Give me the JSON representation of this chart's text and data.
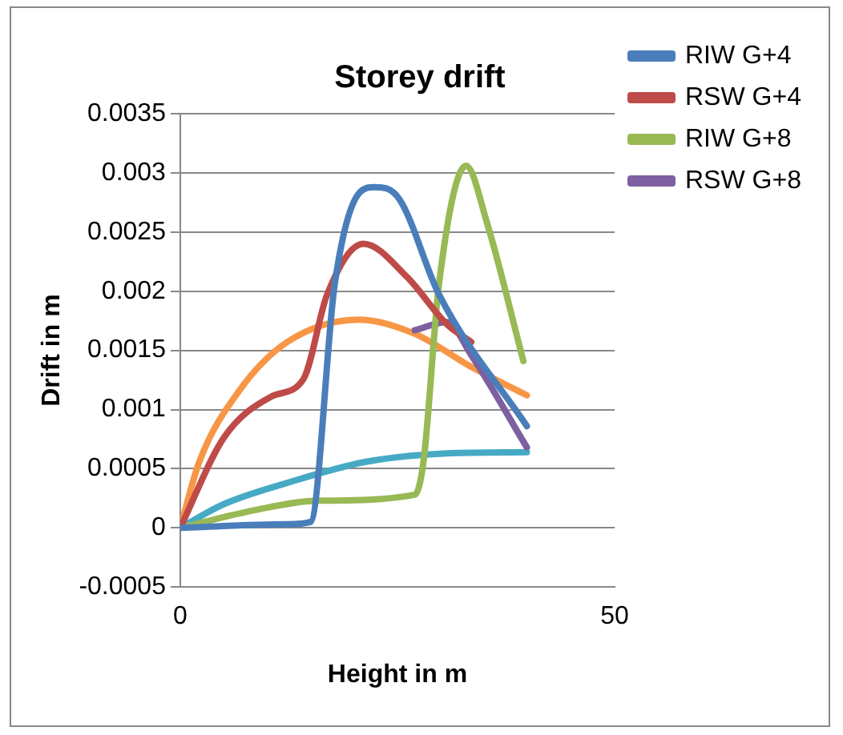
{
  "chart_data": {
    "type": "line",
    "title": "Storey drift",
    "xlabel": "Height in m",
    "ylabel": "Drift in m",
    "xlim": [
      0,
      50
    ],
    "xticks": [
      0,
      50
    ],
    "ylim": [
      -0.0005,
      0.0035
    ],
    "yticks": [
      -0.0005,
      0,
      0.0005,
      0.001,
      0.0015,
      0.002,
      0.0025,
      0.003,
      0.0035
    ],
    "grid": "y",
    "legend": "right",
    "marker": "none",
    "series": [
      {
        "name": "RIW G+4",
        "color": "#4a7ebb",
        "x": [
          0,
          12.3,
          15,
          17.8,
          20.6,
          22.4,
          25.2,
          29.8,
          39.9
        ],
        "values": [
          0,
          3e-05,
          5e-05,
          0.00207,
          0.00283,
          0.00288,
          0.00278,
          0.00197,
          0.00086
        ]
      },
      {
        "name": "RSW G+4",
        "color": "#be4b48",
        "x": [
          0,
          5,
          10.5,
          14.2,
          16.9,
          21.1,
          26.1,
          30.7,
          33.5
        ],
        "values": [
          0,
          0.00076,
          0.00111,
          0.00126,
          0.00197,
          0.0024,
          0.00212,
          0.00172,
          0.00157
        ]
      },
      {
        "name": "RIW G+8",
        "color": "#98b954",
        "x": [
          0,
          8.6,
          16,
          27,
          28,
          29.8,
          32.9,
          35.3,
          39.5
        ],
        "values": [
          0,
          0.00015,
          0.00023,
          0.00028,
          0.00056,
          0.00207,
          0.00306,
          0.00258,
          0.00141
        ]
      },
      {
        "name": "RSW G+8",
        "color": "#7d60a0",
        "x": [
          27,
          30.7,
          33.5,
          39.9
        ],
        "values": [
          0.00167,
          0.00174,
          0.00146,
          0.00068
        ]
      },
      {
        "color": "#46aac5",
        "x": [
          0,
          5,
          12.3,
          21.5,
          30.7,
          39.9
        ],
        "values": [
          0,
          0.0002,
          0.00038,
          0.00056,
          0.00063,
          0.00064
        ]
      },
      {
        "color": "#f79646",
        "x": [
          0,
          2.2,
          6.8,
          12.3,
          20.6,
          27,
          33.5,
          39.9
        ],
        "values": [
          0,
          0.00056,
          0.00116,
          0.00157,
          0.00176,
          0.00164,
          0.00136,
          0.00112
        ]
      }
    ]
  }
}
